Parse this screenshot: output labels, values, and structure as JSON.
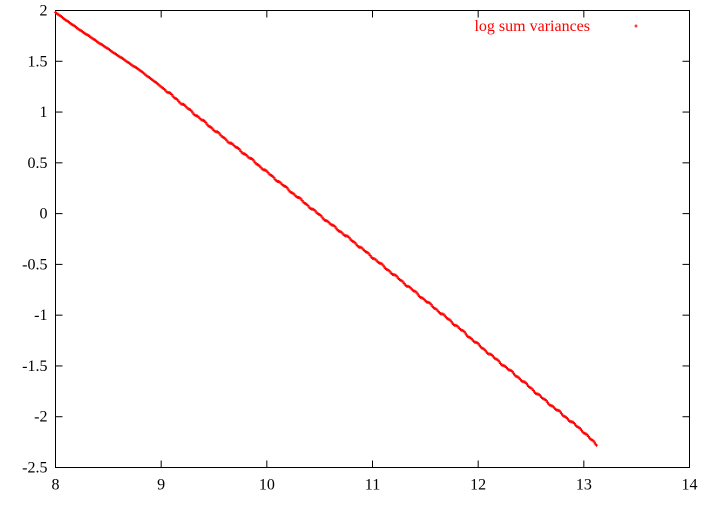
{
  "chart_data": {
    "type": "scatter",
    "title": "",
    "xlabel": "",
    "ylabel": "",
    "xlim": [
      8,
      14
    ],
    "ylim": [
      -2.5,
      2
    ],
    "xticks": [
      8,
      9,
      10,
      11,
      12,
      13,
      14
    ],
    "yticks": [
      2,
      1.5,
      1,
      0.5,
      0,
      -0.5,
      -1,
      -1.5,
      -2,
      -2.5
    ],
    "xtick_labels": [
      "8",
      "9",
      "10",
      "11",
      "12",
      "13",
      "14"
    ],
    "ytick_labels": [
      "2",
      "1.5",
      "1",
      "0.5",
      "0",
      "-0.5",
      "-1",
      "-1.5",
      "-2",
      "-2.5"
    ],
    "grid": false,
    "legend": "top-right",
    "series": [
      {
        "name": "log sum variances",
        "marker": "+",
        "color": "#ff0000",
        "x": [
          8.0,
          8.2,
          8.4,
          8.6,
          8.8,
          9.0,
          9.2,
          9.4,
          9.6,
          9.8,
          10.0,
          10.2,
          10.4,
          10.6,
          10.8,
          11.0,
          11.2,
          11.4,
          11.6,
          11.8,
          12.0,
          12.2,
          12.4,
          12.6,
          12.8,
          13.0,
          13.12
        ],
        "y": [
          1.98,
          1.83,
          1.69,
          1.55,
          1.41,
          1.25,
          1.08,
          0.91,
          0.74,
          0.58,
          0.41,
          0.24,
          0.07,
          -0.1,
          -0.26,
          -0.43,
          -0.6,
          -0.77,
          -0.94,
          -1.11,
          -1.29,
          -1.46,
          -1.63,
          -1.81,
          -1.98,
          -2.15,
          -2.28
        ]
      }
    ]
  }
}
